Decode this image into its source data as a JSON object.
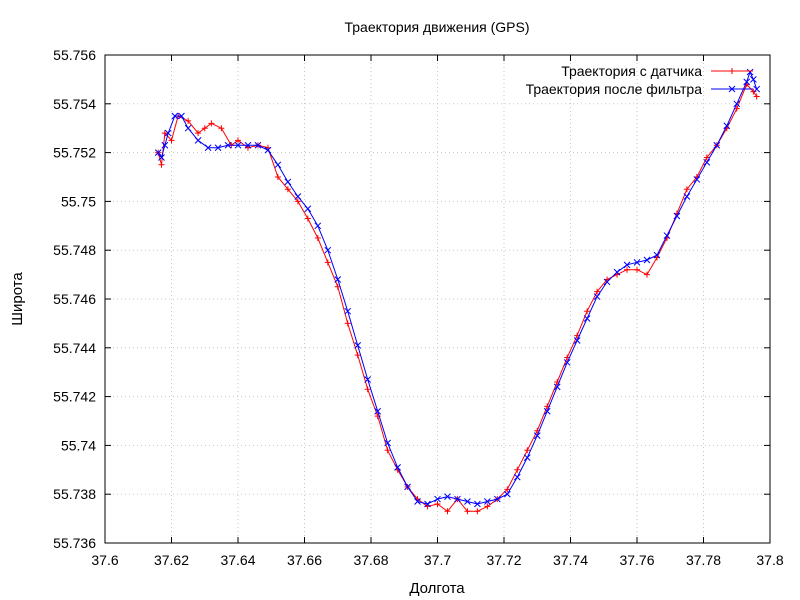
{
  "chart_data": {
    "type": "line",
    "title": "Траектория движения (GPS)",
    "xlabel": "Долгота",
    "ylabel": "Широта",
    "xlim": [
      37.6,
      37.8
    ],
    "ylim": [
      55.736,
      55.756
    ],
    "x_ticks": [
      "37.6",
      "37.62",
      "37.64",
      "37.66",
      "37.68",
      "37.7",
      "37.72",
      "37.74",
      "37.76",
      "37.78",
      "37.8"
    ],
    "y_ticks": [
      "55.736",
      "55.738",
      "55.74",
      "55.742",
      "55.744",
      "55.746",
      "55.748",
      "55.75",
      "55.752",
      "55.754",
      "55.756"
    ],
    "grid": true,
    "legend_position": "top-right",
    "series": [
      {
        "name": "Траектория с датчика",
        "color": "#ff0000",
        "marker": "plus",
        "x": [
          37.616,
          37.617,
          37.618,
          37.62,
          37.622,
          37.625,
          37.628,
          37.63,
          37.632,
          37.635,
          37.638,
          37.64,
          37.643,
          37.646,
          37.649,
          37.652,
          37.655,
          37.658,
          37.661,
          37.664,
          37.667,
          37.67,
          37.673,
          37.676,
          37.679,
          37.682,
          37.685,
          37.688,
          37.691,
          37.694,
          37.697,
          37.7,
          37.703,
          37.706,
          37.709,
          37.712,
          37.715,
          37.718,
          37.721,
          37.724,
          37.727,
          37.73,
          37.733,
          37.736,
          37.739,
          37.742,
          37.745,
          37.748,
          37.751,
          37.754,
          37.757,
          37.76,
          37.763,
          37.766,
          37.769,
          37.772,
          37.775,
          37.778,
          37.781,
          37.784,
          37.787,
          37.79,
          37.793,
          37.795,
          37.796
        ],
        "y": [
          55.752,
          55.7515,
          55.7528,
          55.7525,
          55.7535,
          55.7533,
          55.7528,
          55.753,
          55.7532,
          55.753,
          55.7523,
          55.7525,
          55.7522,
          55.7523,
          55.7522,
          55.751,
          55.7505,
          55.75,
          55.7493,
          55.7485,
          55.7475,
          55.7465,
          55.745,
          55.7437,
          55.7423,
          55.7412,
          55.7398,
          55.739,
          55.7383,
          55.7378,
          55.7375,
          55.7376,
          55.7373,
          55.7378,
          55.7373,
          55.7373,
          55.7375,
          55.7378,
          55.7382,
          55.739,
          55.7398,
          55.7406,
          55.7416,
          55.7426,
          55.7436,
          55.7445,
          55.7455,
          55.7463,
          55.7468,
          55.747,
          55.7472,
          55.7472,
          55.747,
          55.7477,
          55.7485,
          55.7495,
          55.7505,
          55.751,
          55.7518,
          55.7523,
          55.753,
          55.7538,
          55.7548,
          55.7545,
          55.7543
        ]
      },
      {
        "name": "Траектория после фильтра",
        "color": "#0000ff",
        "marker": "cross",
        "x": [
          37.616,
          37.617,
          37.618,
          37.619,
          37.621,
          37.623,
          37.625,
          37.628,
          37.631,
          37.634,
          37.637,
          37.64,
          37.643,
          37.646,
          37.649,
          37.652,
          37.655,
          37.658,
          37.661,
          37.664,
          37.667,
          37.67,
          37.673,
          37.676,
          37.679,
          37.682,
          37.685,
          37.688,
          37.691,
          37.694,
          37.697,
          37.7,
          37.703,
          37.706,
          37.709,
          37.712,
          37.715,
          37.718,
          37.721,
          37.724,
          37.727,
          37.73,
          37.733,
          37.736,
          37.739,
          37.742,
          37.745,
          37.748,
          37.751,
          37.754,
          37.757,
          37.76,
          37.763,
          37.766,
          37.769,
          37.772,
          37.775,
          37.778,
          37.781,
          37.784,
          37.787,
          37.79,
          37.793,
          37.794,
          37.795,
          37.796
        ],
        "y": [
          55.752,
          55.7518,
          55.7523,
          55.7528,
          55.7535,
          55.7535,
          55.753,
          55.7525,
          55.7522,
          55.7522,
          55.7523,
          55.7523,
          55.7523,
          55.7523,
          55.7521,
          55.7515,
          55.7508,
          55.7502,
          55.7497,
          55.749,
          55.748,
          55.7468,
          55.7455,
          55.7441,
          55.7427,
          55.7414,
          55.7401,
          55.7391,
          55.7383,
          55.7377,
          55.7376,
          55.7378,
          55.7379,
          55.7378,
          55.7377,
          55.7376,
          55.7377,
          55.7378,
          55.738,
          55.7387,
          55.7395,
          55.7404,
          55.7414,
          55.7424,
          55.7434,
          55.7443,
          55.7452,
          55.7461,
          55.7467,
          55.7471,
          55.7474,
          55.7475,
          55.7476,
          55.7478,
          55.7486,
          55.7494,
          55.7502,
          55.7509,
          55.7516,
          55.7523,
          55.7531,
          55.754,
          55.7549,
          55.7553,
          55.755,
          55.7546
        ]
      }
    ]
  }
}
